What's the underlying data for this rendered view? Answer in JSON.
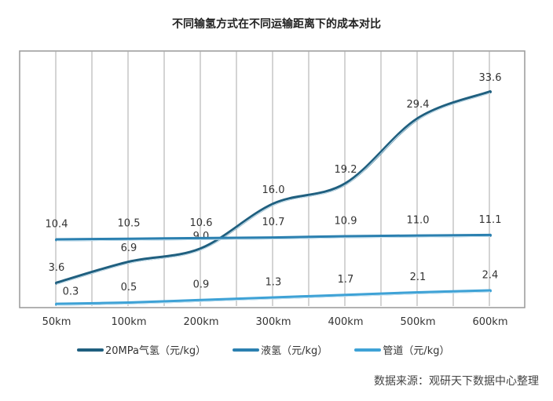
{
  "chart_data": {
    "type": "line",
    "title": "不同输氢方式在不同运输距离下的成本对比",
    "categories": [
      "50km",
      "100km",
      "200km",
      "300km",
      "400km",
      "500km",
      "600km"
    ],
    "ylim": [
      0,
      40
    ],
    "grid": {
      "vertical": true,
      "horizontal": false
    },
    "legend_position": "bottom",
    "smooth": true,
    "series": [
      {
        "name": "20MPa气氢（元/kg）",
        "color": "#1f5f7f",
        "values": [
          3.6,
          6.9,
          9.0,
          16.0,
          19.2,
          29.4,
          33.6
        ]
      },
      {
        "name": "液氢（元/kg）",
        "color": "#2b80b0",
        "values": [
          10.4,
          10.5,
          10.6,
          10.7,
          10.9,
          11.0,
          11.1
        ]
      },
      {
        "name": "管道（元/kg）",
        "color": "#3ea2d6",
        "values": [
          0.3,
          0.5,
          0.9,
          1.3,
          1.7,
          2.1,
          2.4
        ]
      }
    ]
  },
  "source": "数据来源：观研天下数据中心整理"
}
